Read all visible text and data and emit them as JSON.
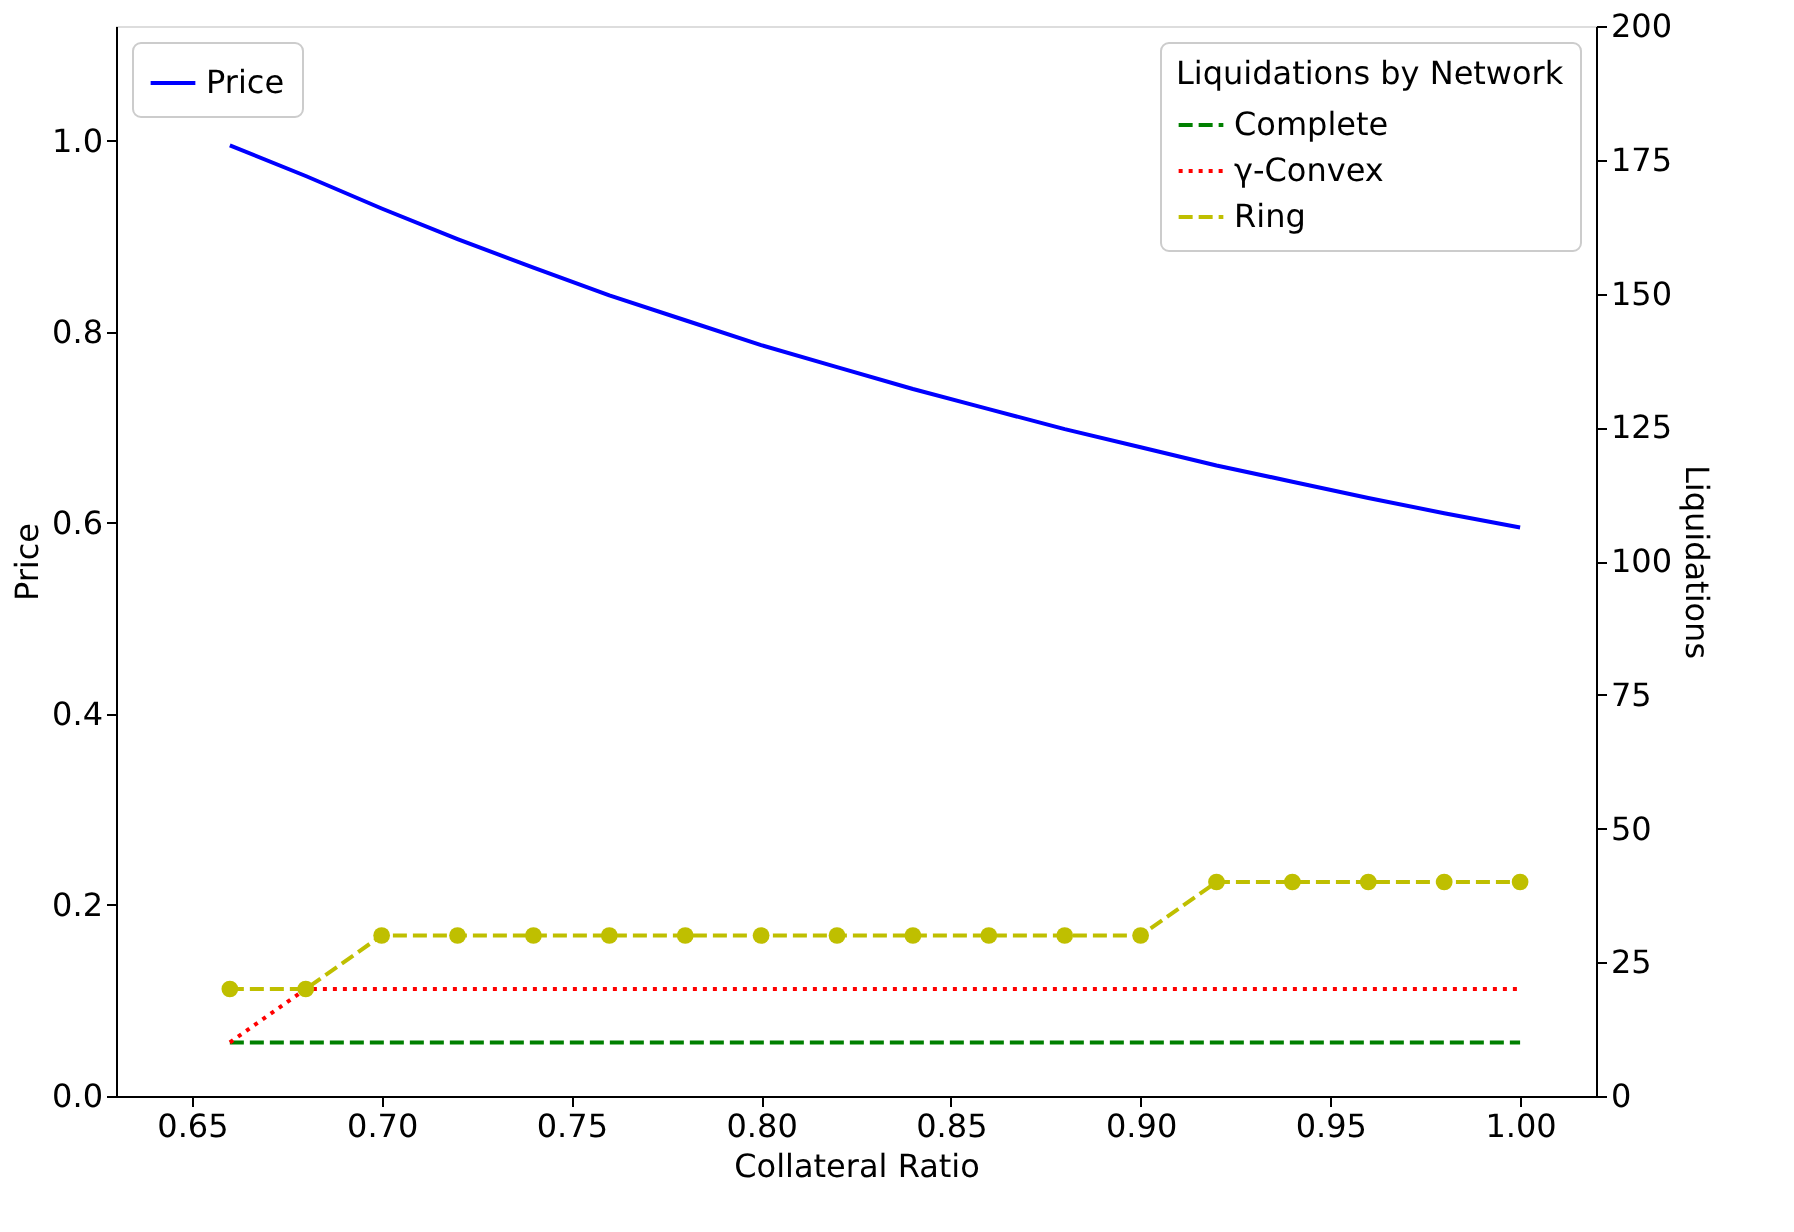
{
  "chart_data": {
    "type": "line",
    "xlabel": "Collateral Ratio",
    "ylabel": "Price",
    "y2label": "Liquidations",
    "legend_title": "Liquidations by Network",
    "x": [
      0.66,
      0.68,
      0.7,
      0.72,
      0.74,
      0.76,
      0.78,
      0.8,
      0.82,
      0.84,
      0.86,
      0.88,
      0.9,
      0.92,
      0.94,
      0.96,
      0.98,
      1.0
    ],
    "xlim": [
      0.63,
      1.02
    ],
    "xticks": [
      {
        "value": 0.65,
        "label": "0.65"
      },
      {
        "value": 0.7,
        "label": "0.70"
      },
      {
        "value": 0.75,
        "label": "0.75"
      },
      {
        "value": 0.8,
        "label": "0.80"
      },
      {
        "value": 0.85,
        "label": "0.85"
      },
      {
        "value": 0.9,
        "label": "0.90"
      },
      {
        "value": 0.95,
        "label": "0.95"
      },
      {
        "value": 1.0,
        "label": "1.00"
      }
    ],
    "ylim": [
      0,
      1.12
    ],
    "yticks": [
      {
        "value": 0,
        "label": "0.0"
      },
      {
        "value": 0.2,
        "label": "0.2"
      },
      {
        "value": 0.4,
        "label": "0.4"
      },
      {
        "value": 0.6,
        "label": "0.6"
      },
      {
        "value": 0.8,
        "label": "0.8"
      },
      {
        "value": 1.0,
        "label": "1.0"
      }
    ],
    "y2lim": [
      0,
      200
    ],
    "y2ticks": [
      0,
      25,
      50,
      75,
      100,
      125,
      150,
      175,
      200
    ],
    "grid": false,
    "marker": "none",
    "legend": "top",
    "series": [
      {
        "name": "Price",
        "color": "#0000ff",
        "line_style": "solid",
        "values": [
          0.995,
          0.963,
          0.929,
          0.897,
          0.867,
          0.838,
          0.812,
          0.786,
          0.763,
          0.74,
          0.719,
          0.698,
          0.679,
          0.66,
          0.643,
          0.626,
          0.61,
          0.595
        ]
      },
      {
        "name": "Complete",
        "color": "#008000",
        "line_style": "dashed",
        "axis": "y2",
        "values": [
          10,
          10,
          10,
          10,
          10,
          10,
          10,
          10,
          10,
          10,
          10,
          10,
          10,
          10,
          10,
          10,
          10,
          10
        ]
      },
      {
        "name": "γ-Convex",
        "color": "#ff0000",
        "line_style": "dotted",
        "axis": "y2",
        "values": [
          10,
          20,
          20,
          20,
          20,
          20,
          20,
          20,
          20,
          20,
          20,
          20,
          20,
          20,
          20,
          20,
          20,
          20
        ]
      },
      {
        "name": "Ring",
        "color": "#bfbf00",
        "line_style": "dashed",
        "axis": "y2",
        "marker": "circle",
        "values": [
          20,
          20,
          30,
          30,
          30,
          30,
          30,
          30,
          30,
          30,
          30,
          30,
          30,
          40,
          40,
          40,
          40,
          40
        ]
      }
    ]
  }
}
